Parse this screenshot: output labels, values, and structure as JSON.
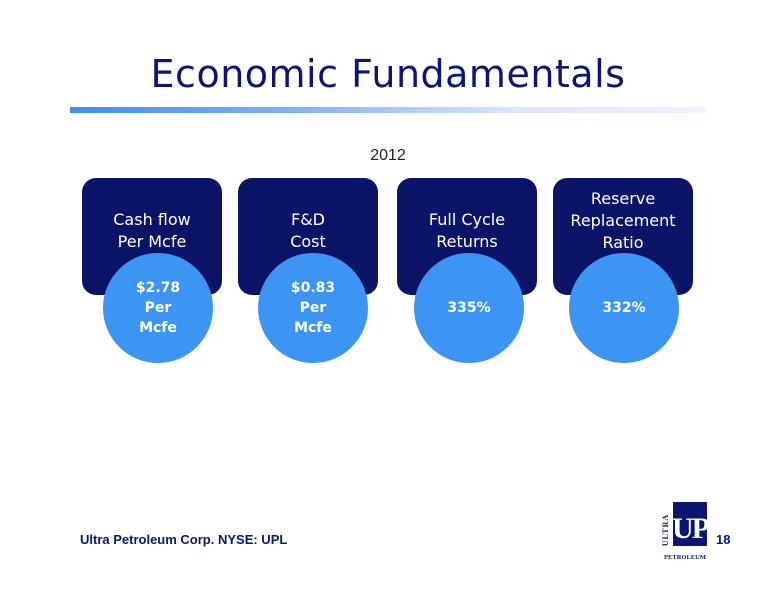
{
  "slide": {
    "title": "Economic Fundamentals",
    "year": "2012"
  },
  "metrics": [
    {
      "label_lines": [
        "Cash flow",
        "Per Mcfe"
      ],
      "value_lines": [
        "$2.78",
        "Per",
        "Mcfe"
      ]
    },
    {
      "label_lines": [
        "F&D",
        "Cost"
      ],
      "value_lines": [
        "$0.83",
        "Per",
        "Mcfe"
      ]
    },
    {
      "label_lines": [
        "Full Cycle",
        "Returns"
      ],
      "value_lines": [
        "335%"
      ]
    },
    {
      "label_lines": [
        "Reserve",
        "Replacement",
        "Ratio"
      ],
      "value_lines": [
        "332%"
      ]
    }
  ],
  "footer": {
    "company": "Ultra Petroleum Corp. NYSE: UPL",
    "page_number": "18"
  },
  "logo": {
    "vertical_text": "ULTRA",
    "initials": "UP",
    "bottom_text": "PETROLEUM"
  },
  "colors": {
    "title": "#0a1670",
    "card": "#0c1468",
    "circle": "#3c95f3"
  }
}
